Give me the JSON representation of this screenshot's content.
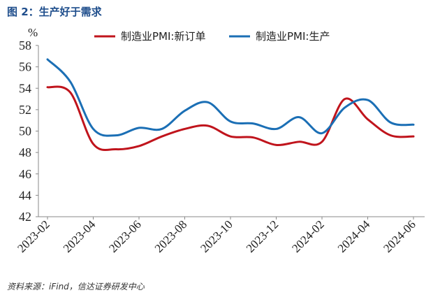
{
  "figure": {
    "title": "图 2：生产好于需求",
    "source": "资料来源：iFind，信达证券研发中心"
  },
  "chart_data": {
    "type": "line",
    "ylabel": "%",
    "ylim": [
      42,
      58
    ],
    "yticks": [
      42,
      44,
      46,
      48,
      50,
      52,
      54,
      56,
      58
    ],
    "grid": false,
    "legend_position": "top",
    "x": [
      "2023-02",
      "2023-03",
      "2023-04",
      "2023-05",
      "2023-06",
      "2023-07",
      "2023-08",
      "2023-09",
      "2023-10",
      "2023-11",
      "2023-12",
      "2024-01",
      "2024-02",
      "2024-03",
      "2024-04",
      "2024-05",
      "2024-06"
    ],
    "xticks": [
      "2023-02",
      "2023-04",
      "2023-06",
      "2023-08",
      "2023-10",
      "2023-12",
      "2024-02",
      "2024-04",
      "2024-06"
    ],
    "series": [
      {
        "name": "制造业PMI:新订单",
        "color": "#c0141c",
        "values": [
          54.1,
          53.6,
          48.8,
          48.3,
          48.6,
          49.5,
          50.2,
          50.5,
          49.5,
          49.4,
          48.7,
          49.0,
          49.0,
          53.0,
          51.1,
          49.6,
          49.5
        ]
      },
      {
        "name": "制造业PMI:生产",
        "color": "#1b6fb5",
        "values": [
          56.7,
          54.6,
          50.2,
          49.6,
          50.3,
          50.2,
          51.9,
          52.7,
          50.9,
          50.7,
          50.2,
          51.3,
          49.8,
          52.2,
          52.9,
          50.8,
          50.6
        ]
      }
    ]
  }
}
